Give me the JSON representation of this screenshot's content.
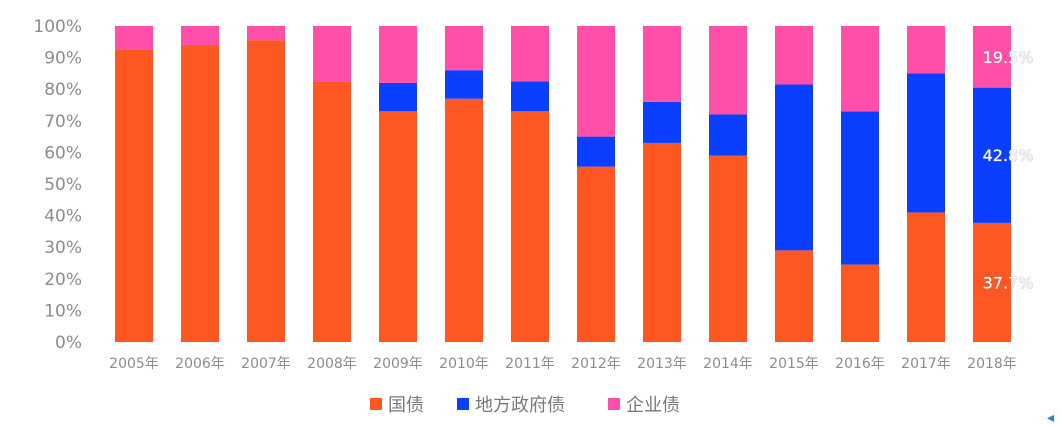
{
  "chart_data": {
    "type": "bar",
    "stacked": true,
    "categories": [
      "2005年",
      "2006年",
      "2007年",
      "2008年",
      "2009年",
      "2010年",
      "2011年",
      "2012年",
      "2013年",
      "2014年",
      "2015年",
      "2016年",
      "2017年",
      "2018年"
    ],
    "series": [
      {
        "name": "国债",
        "color": "#ff5722",
        "values": [
          92.5,
          94,
          95.5,
          82.5,
          73,
          77,
          73,
          55.5,
          63,
          59,
          29,
          24.5,
          41,
          37.7
        ]
      },
      {
        "name": "地方政府债",
        "color": "#0a3fff",
        "values": [
          0,
          0,
          0,
          0,
          9,
          9,
          9.5,
          9.5,
          13,
          13,
          52.5,
          48.5,
          44,
          42.8
        ]
      },
      {
        "name": "企业债",
        "color": "#ff4fa8",
        "values": [
          7.5,
          6,
          4.5,
          17.5,
          18,
          14,
          17.5,
          35,
          24,
          28,
          18.5,
          27,
          15,
          19.5
        ]
      }
    ],
    "ylim": [
      0,
      100
    ],
    "yticks": [
      "0%",
      "10%",
      "20%",
      "30%",
      "40%",
      "50%",
      "60%",
      "70%",
      "80%",
      "90%",
      "100%"
    ],
    "grid": false,
    "legend": "bottom",
    "data_labels": [
      {
        "category": "2018年",
        "series": "企业债",
        "text": "19.5%"
      },
      {
        "category": "2018年",
        "series": "地方政府债",
        "text": "42.8%"
      },
      {
        "category": "2018年",
        "series": "国债",
        "text": "37.7%"
      }
    ]
  }
}
